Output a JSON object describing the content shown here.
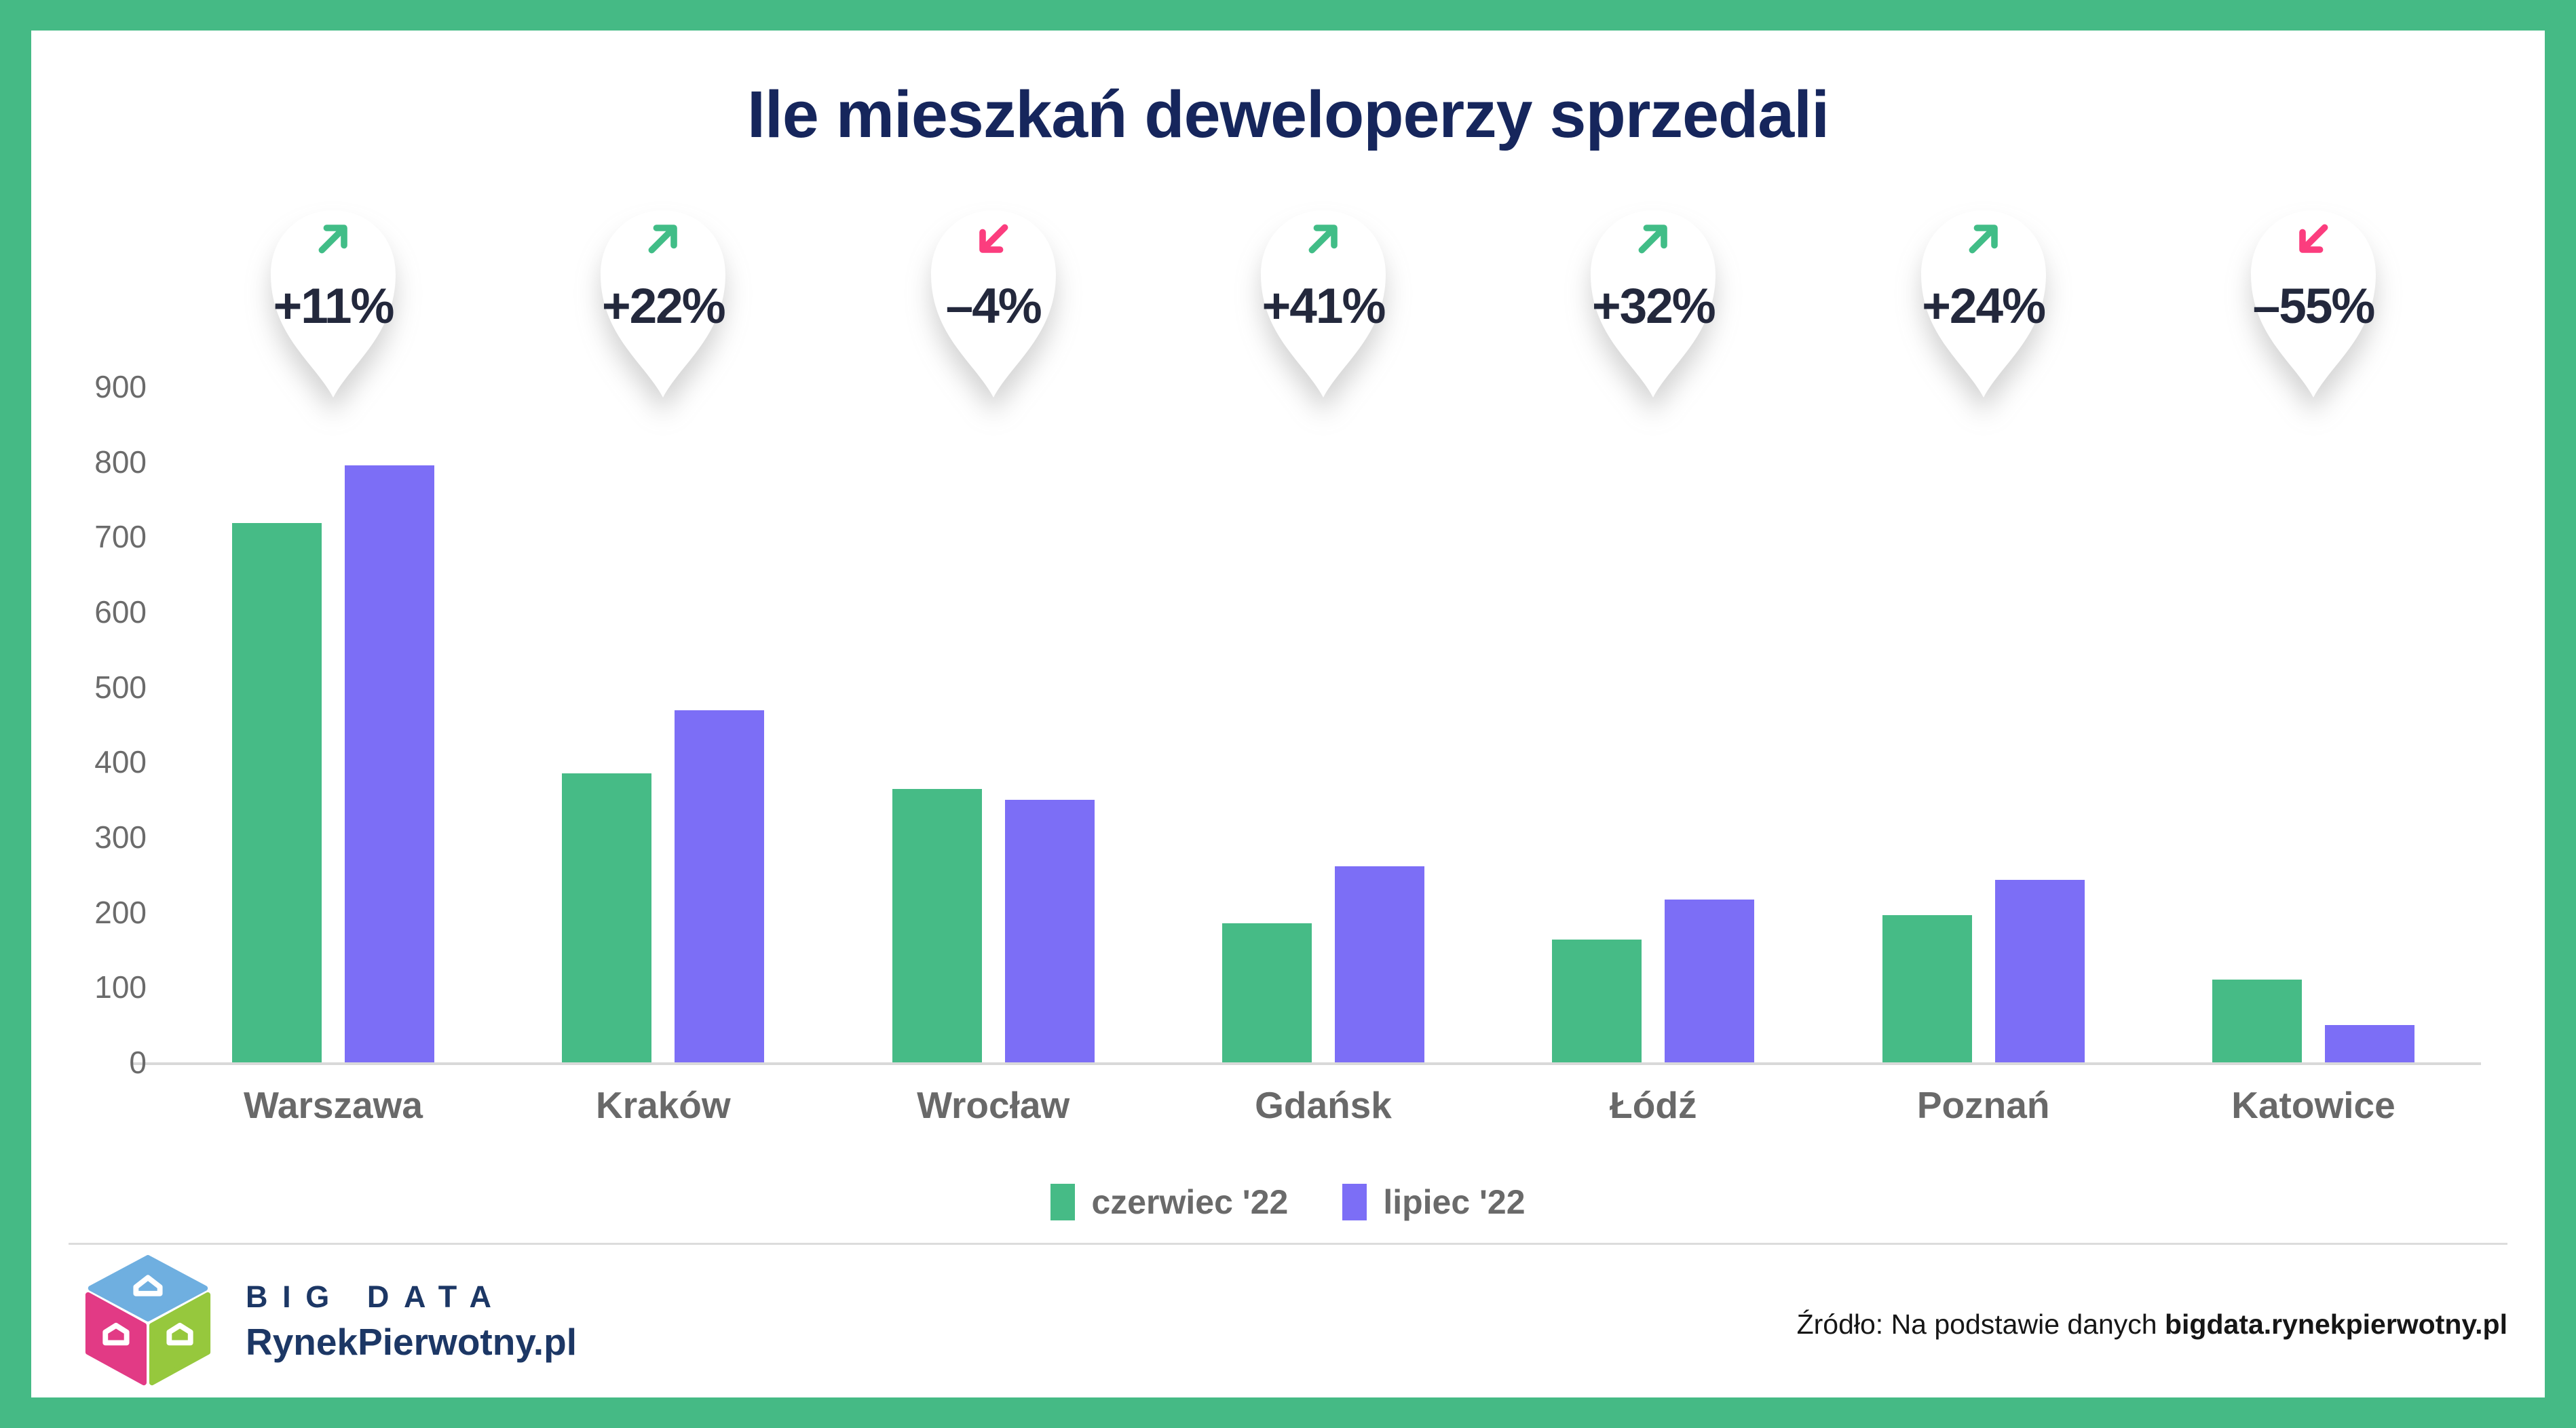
{
  "title": "Ile mieszkań deweloperzy sprzedali",
  "chart_data": {
    "type": "bar",
    "categories": [
      "Warszawa",
      "Kraków",
      "Wrocław",
      "Gdańsk",
      "Łódź",
      "Poznań",
      "Katowice"
    ],
    "series": [
      {
        "name": "czerwiec '22",
        "color": "#46bb86",
        "values": [
          718,
          385,
          364,
          185,
          164,
          196,
          110
        ]
      },
      {
        "name": "lipiec '22",
        "color": "#7c6ef6",
        "values": [
          795,
          469,
          350,
          261,
          217,
          243,
          50
        ]
      }
    ],
    "badges": [
      {
        "label": "+11%",
        "direction": "up"
      },
      {
        "label": "+22%",
        "direction": "up"
      },
      {
        "label": "–4%",
        "direction": "down"
      },
      {
        "label": "+41%",
        "direction": "up"
      },
      {
        "label": "+32%",
        "direction": "up"
      },
      {
        "label": "+24%",
        "direction": "up"
      },
      {
        "label": "–55%",
        "direction": "down"
      }
    ],
    "y_ticks": [
      0,
      100,
      200,
      300,
      400,
      500,
      600,
      700,
      800,
      900
    ],
    "ylim": [
      0,
      900
    ],
    "grid": false,
    "legend_position": "bottom",
    "arrow_up_color": "#41bd87",
    "arrow_down_color": "#fb3d7e"
  },
  "footer": {
    "brand_top": "BIG DATA",
    "brand_bottom": "RynekPierwotny.pl",
    "source_prefix": "Źródło: Na podstawie danych ",
    "source_bold": "bigdata.rynekpierwotny.pl"
  },
  "colors": {
    "frame": "#45ba85",
    "title": "#16265c",
    "axis_text": "#6b6b6b",
    "badge_text": "#23283c",
    "logo_blue": "#6fafe0",
    "logo_pink": "#e23a85",
    "logo_green": "#96c83d",
    "logo_navy": "#1c3765"
  }
}
